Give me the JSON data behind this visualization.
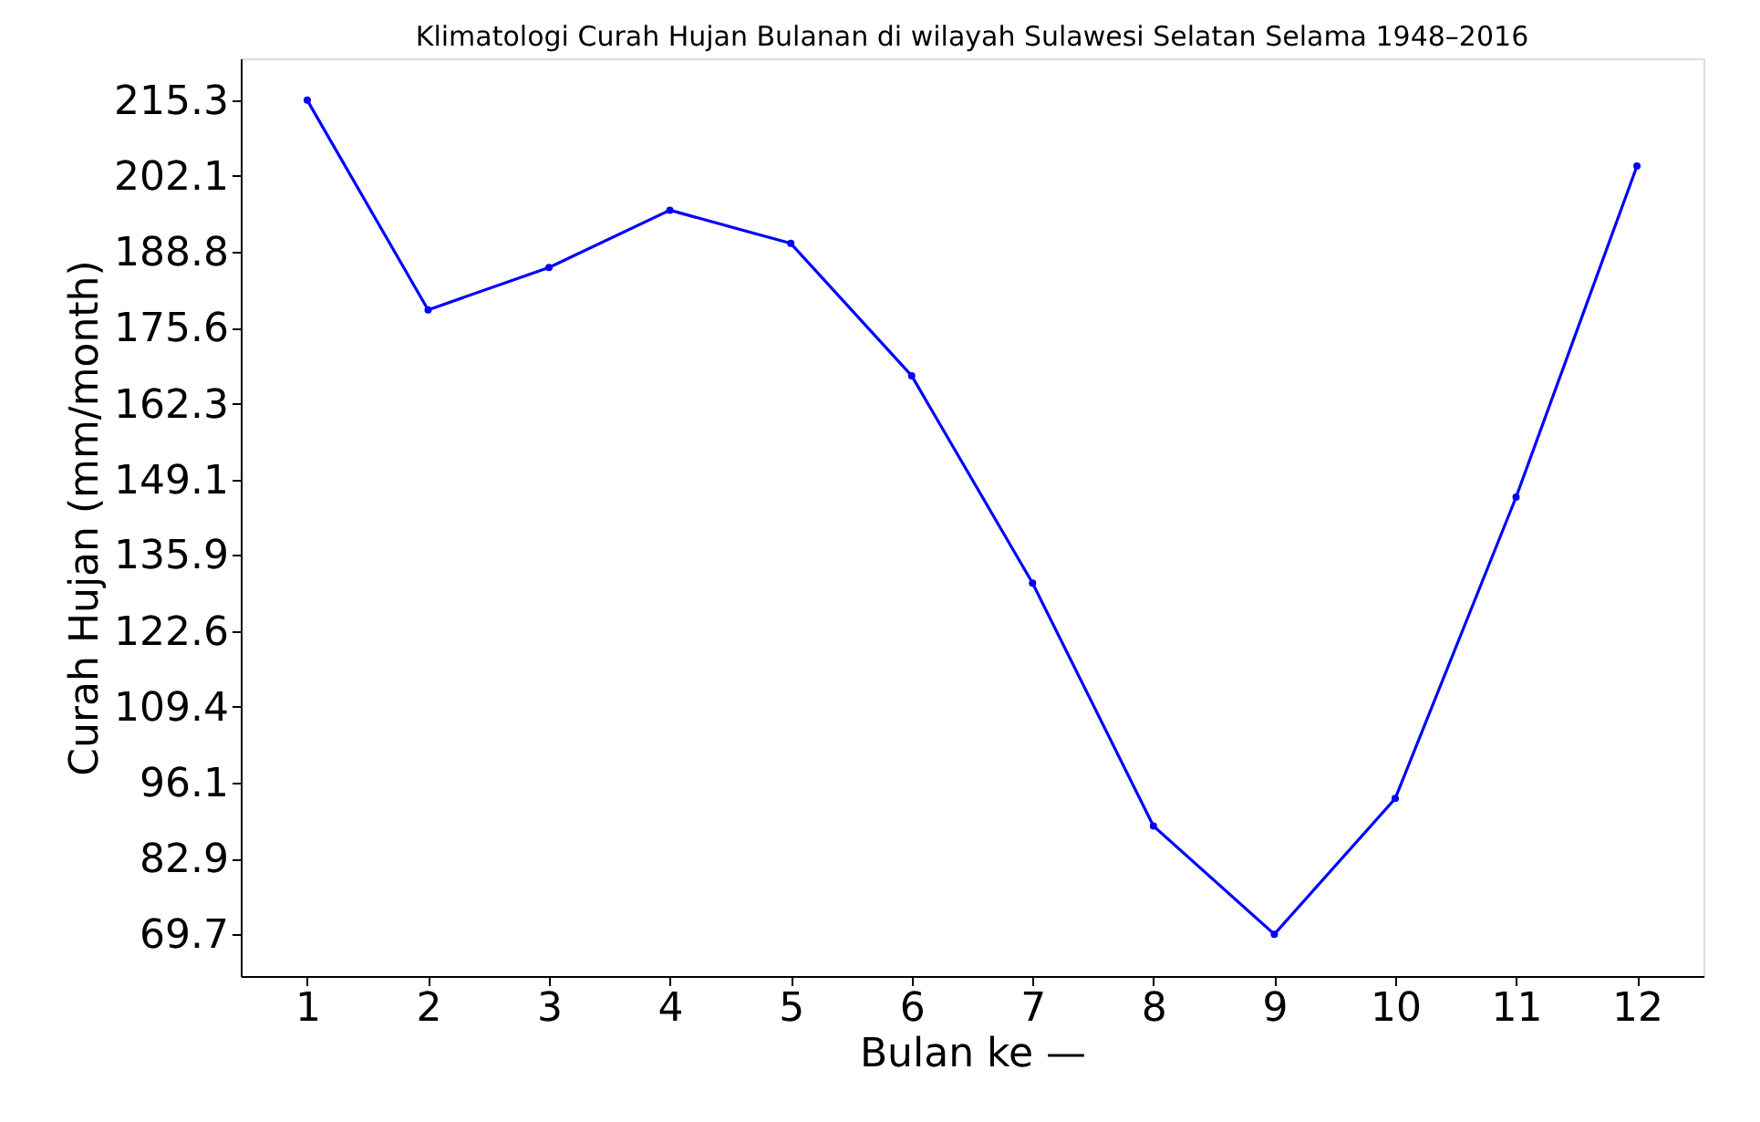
{
  "chart_data": {
    "type": "line",
    "title": "Klimatologi Curah Hujan Bulanan di wilayah Sulawesi Selatan Selama 1948–2016",
    "xlabel": "Bulan ke —",
    "ylabel": "Curah Hujan (mm/month)",
    "x": [
      1,
      2,
      3,
      4,
      5,
      6,
      7,
      8,
      9,
      10,
      11,
      12
    ],
    "series": [
      {
        "color": "#0000ff",
        "values": [
          215.3,
          178.7,
          186.1,
          196.1,
          190.3,
          167.2,
          131.0,
          88.6,
          69.7,
          93.4,
          146.0,
          203.8
        ]
      }
    ],
    "xlim": [
      0.45,
      12.55
    ],
    "xticks": [
      1,
      2,
      3,
      4,
      5,
      6,
      7,
      8,
      9,
      10,
      11,
      12
    ],
    "ylim": [
      62.4,
      222.6
    ],
    "yticks": [
      69.7,
      82.9,
      96.1,
      109.4,
      122.6,
      135.9,
      149.1,
      162.3,
      175.6,
      188.8,
      202.1,
      215.3
    ],
    "marker": "circle",
    "line_style": "solid"
  }
}
